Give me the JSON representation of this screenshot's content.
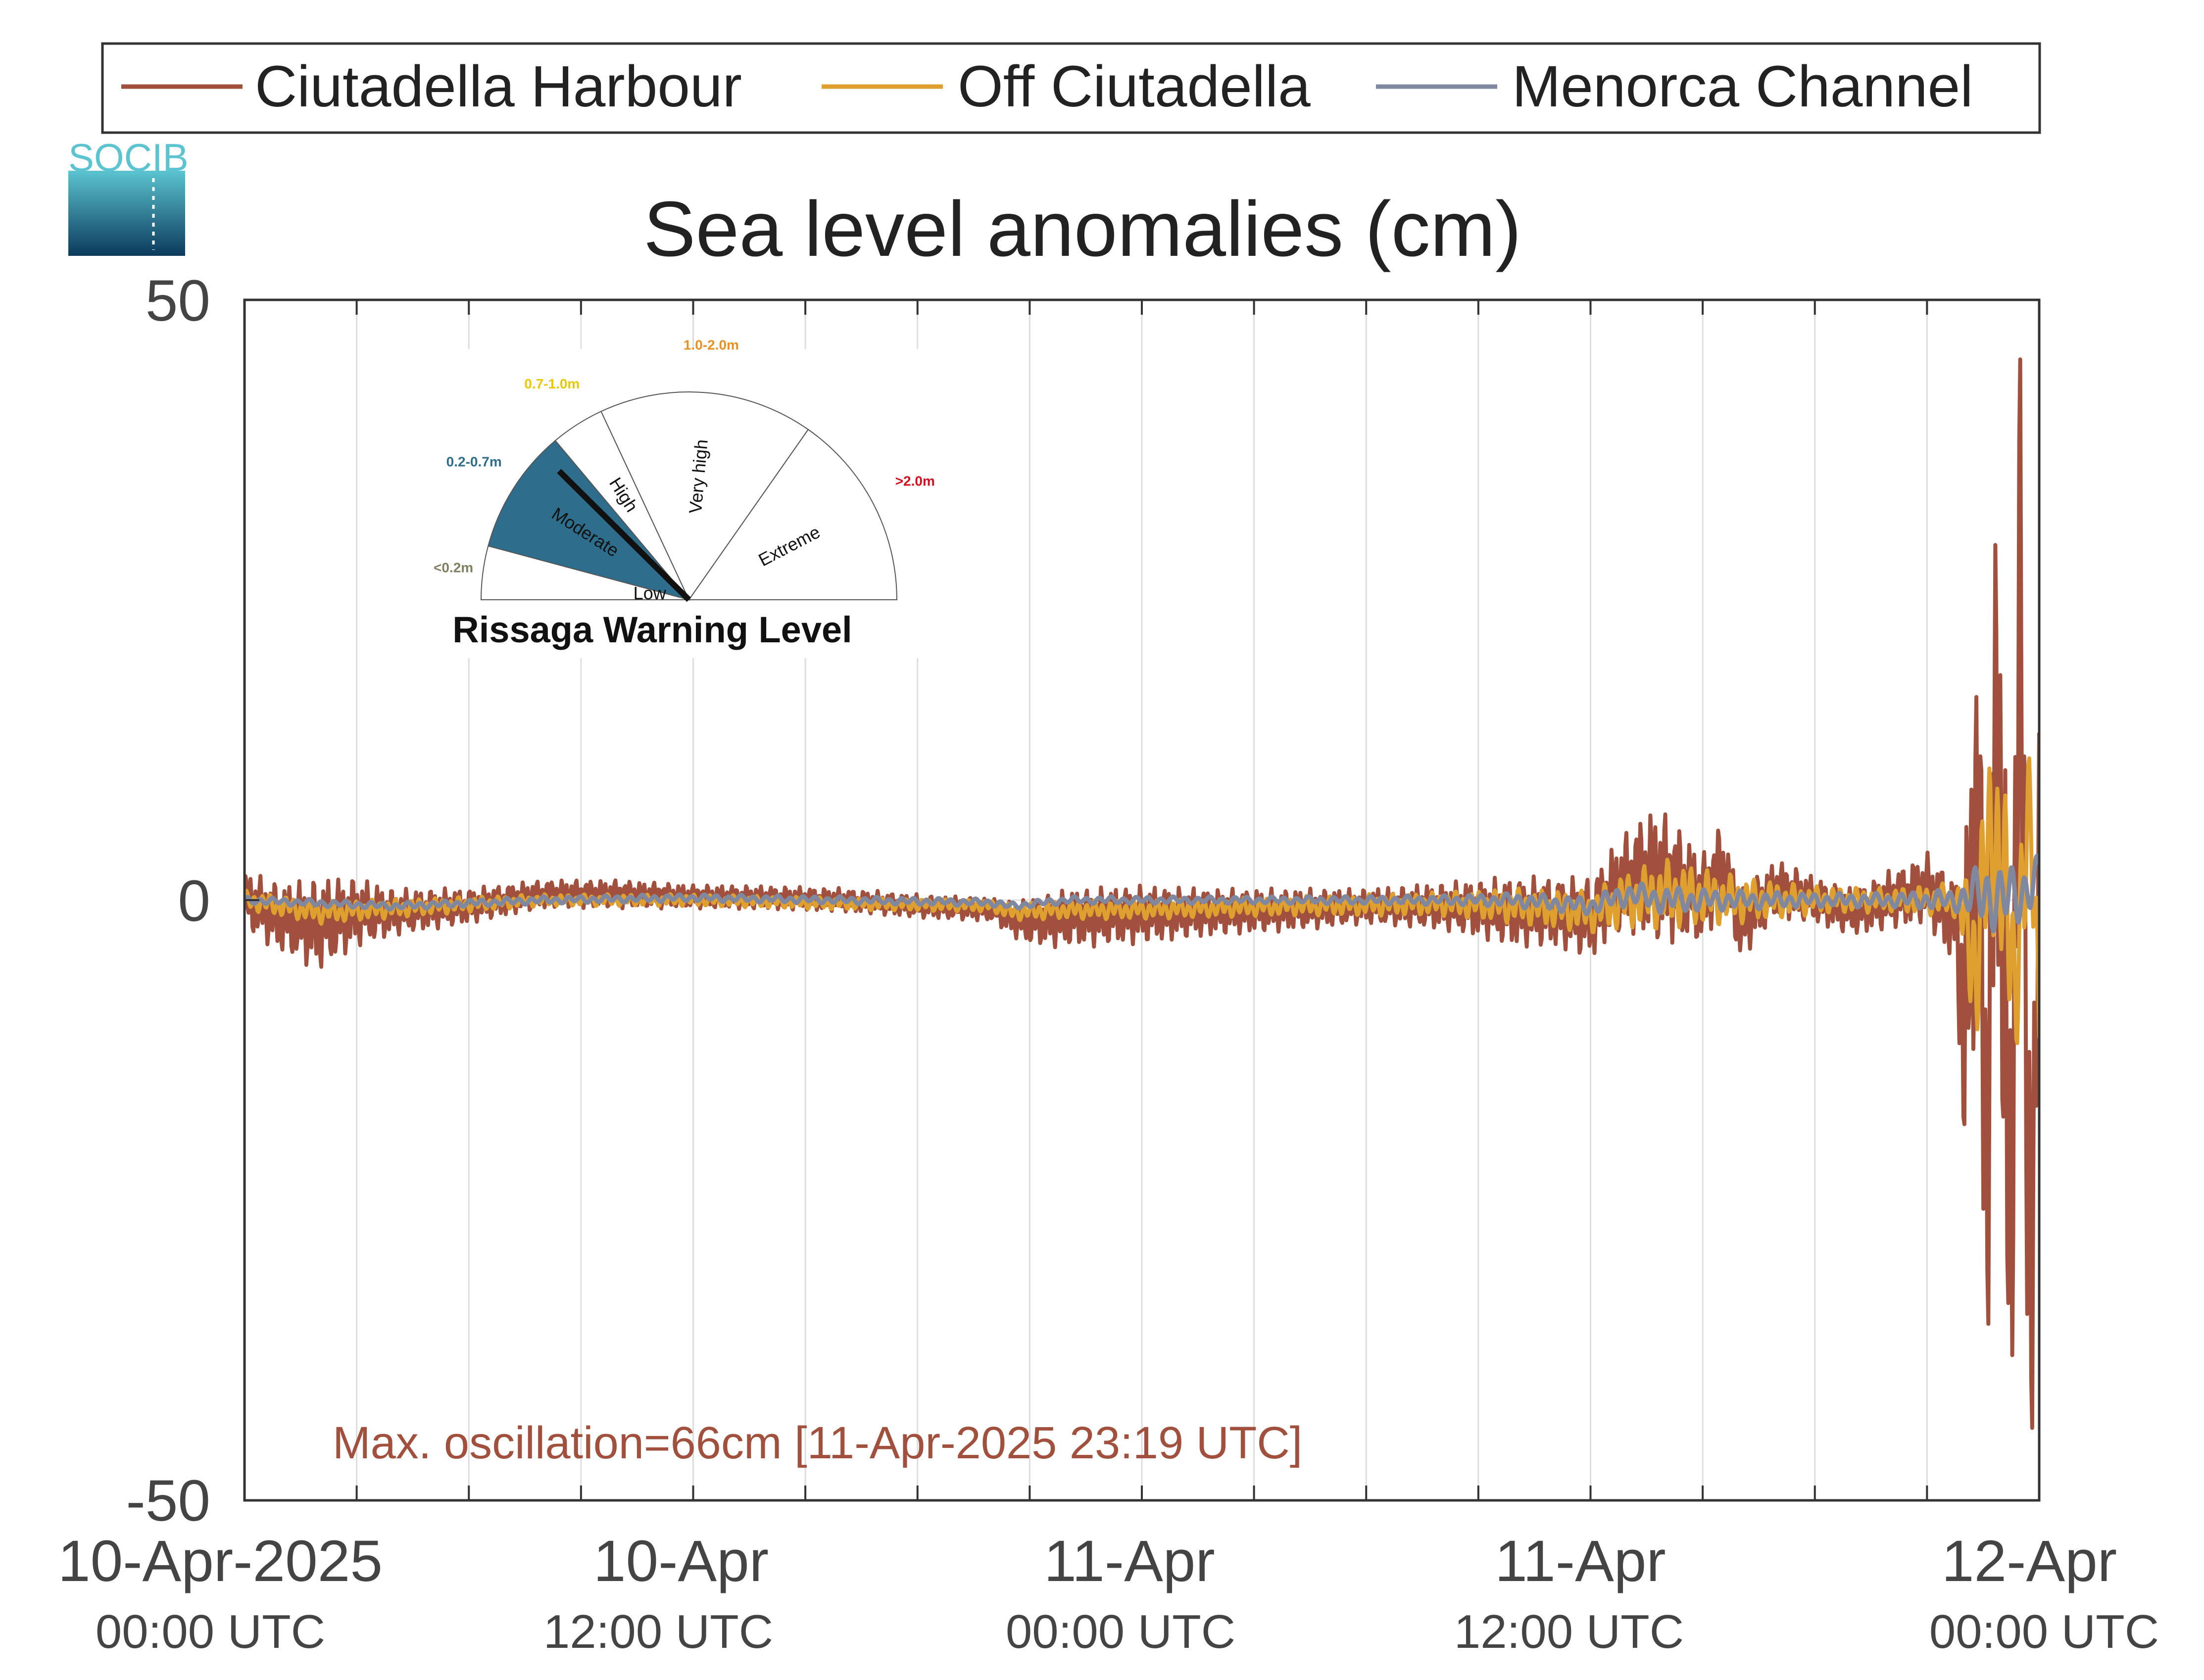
{
  "colors": {
    "harbour": "#A0503C",
    "off": "#E0A030",
    "channel": "#8088A0",
    "logo_top": "#5BC4D0",
    "logo_bottom": "#0B3A5C",
    "annotation": "#A0503C",
    "gauge_fill": "#2E6E8C"
  },
  "logo": {
    "text": "SOCIB"
  },
  "legend": {
    "placement": "top, outside axes",
    "items": [
      "Ciutadella Harbour",
      "Off Ciutadella",
      "Menorca Channel"
    ]
  },
  "chart_data": {
    "type": "line",
    "title": "Sea level anomalies (cm)",
    "xlabel": "",
    "ylabel": "",
    "ylim": [
      -50,
      50
    ],
    "yticks": [
      "50",
      "0",
      "-50"
    ],
    "xlim_hours": [
      0,
      48
    ],
    "xtick_hours": [
      0,
      12,
      24,
      36,
      48
    ],
    "xticks": [
      {
        "date": "10-Apr-2025",
        "time": "00:00 UTC"
      },
      {
        "date": "10-Apr",
        "time": "12:00 UTC"
      },
      {
        "date": "11-Apr",
        "time": "00:00 UTC"
      },
      {
        "date": "11-Apr",
        "time": "12:00 UTC"
      },
      {
        "date": "12-Apr",
        "time": "00:00 UTC"
      }
    ],
    "grid": "vertical lines every 3 hours",
    "series": [
      {
        "name": "Ciutadella Harbour",
        "x_hours": [
          0,
          1,
          2,
          3,
          4,
          6,
          8,
          10,
          12,
          14,
          16,
          18,
          20,
          20.5,
          21,
          22,
          24,
          26,
          28,
          30,
          32,
          33,
          34,
          35,
          36,
          36.7,
          37.3,
          37.8,
          38.3,
          39,
          39.5,
          40,
          41,
          42,
          43,
          44,
          45,
          45.8,
          46,
          46.3,
          46.6,
          46.9,
          47.2,
          47.5,
          47.8,
          48
        ],
        "y_cm": [
          0,
          -1.5,
          -2,
          -1,
          -1,
          -0.5,
          0.5,
          0.5,
          0.3,
          0.2,
          0,
          -0.5,
          -0.8,
          -1.5,
          -1.8,
          -1.5,
          -1.2,
          -1,
          -0.8,
          -0.5,
          -0.5,
          -0.7,
          -1,
          -1,
          -1.5,
          1,
          2,
          2,
          1.5,
          0,
          3,
          -2,
          1,
          0,
          -1,
          0,
          1,
          -2,
          -12,
          8,
          -20,
          18,
          -30,
          25,
          -40,
          10
        ],
        "amplitude_cm": [
          2.5,
          3,
          4,
          3,
          2,
          1.5,
          1.2,
          1.2,
          1,
          1,
          1,
          1,
          1,
          1.5,
          2,
          2.5,
          2.5,
          2,
          1.8,
          1.5,
          2,
          2.5,
          3,
          3,
          3.5,
          4,
          5,
          6,
          5,
          4,
          3.5,
          3,
          2.5,
          2,
          2,
          2.5,
          3,
          4,
          14,
          18,
          22,
          26,
          24,
          24,
          20,
          10
        ]
      },
      {
        "name": "Off Ciutadella",
        "x_hours": [
          0,
          2,
          4,
          8,
          12,
          16,
          20,
          20.5,
          22,
          24,
          28,
          32,
          34,
          36,
          37,
          38,
          40,
          42,
          44,
          45.8,
          46.3,
          46.8,
          47.3,
          47.8,
          48
        ],
        "y_cm": [
          0,
          -1,
          -0.7,
          0,
          0,
          -0.3,
          -0.5,
          -1,
          -0.8,
          -0.8,
          -0.5,
          -0.3,
          -0.5,
          -1,
          0,
          0.5,
          0,
          0,
          0,
          0,
          -5,
          7,
          -6,
          6,
          -8
        ],
        "amplitude_cm": [
          0.8,
          1,
          0.8,
          0.5,
          0.5,
          0.5,
          0.5,
          0.7,
          0.8,
          0.8,
          0.8,
          1,
          1.5,
          1.8,
          2.5,
          3,
          2,
          1.2,
          1,
          1.5,
          8,
          10,
          9,
          8,
          6
        ]
      },
      {
        "name": "Menorca Channel",
        "x_hours": [
          0,
          4,
          8,
          12,
          16,
          20,
          20.5,
          22,
          24,
          28,
          32,
          34,
          36,
          37,
          38,
          40,
          42,
          44,
          45.8,
          46.5,
          47.3,
          48
        ],
        "y_cm": [
          0,
          -0.5,
          0,
          0.2,
          0,
          -0.2,
          -0.5,
          0,
          0,
          0,
          0,
          0,
          -0.5,
          0.5,
          0,
          0,
          0,
          0,
          0,
          0.5,
          0,
          2
        ],
        "amplitude_cm": [
          0.3,
          0.3,
          0.3,
          0.3,
          0.3,
          0.3,
          0.3,
          0.3,
          0.3,
          0.3,
          0.4,
          0.6,
          0.8,
          1,
          1.2,
          0.8,
          0.6,
          0.6,
          1,
          3,
          3,
          2
        ]
      }
    ],
    "annotation": "Max. oscillation=66cm [11-Apr-2025 23:19 UTC]"
  },
  "gauge": {
    "title": "Rissaga Warning Level",
    "current_level": "Moderate",
    "levels": [
      {
        "name": "Low",
        "range": "<0.2m",
        "range_color": "#808060"
      },
      {
        "name": "Moderate",
        "range": "0.2-0.7m",
        "range_color": "#2E6E8C"
      },
      {
        "name": "High",
        "range": "0.7-1.0m",
        "range_color": "#E8C800"
      },
      {
        "name": "Very high",
        "range": "1.0-2.0m",
        "range_color": "#E89020"
      },
      {
        "name": "Extreme",
        "range": ">2.0m",
        "range_color": "#D01020"
      }
    ]
  }
}
